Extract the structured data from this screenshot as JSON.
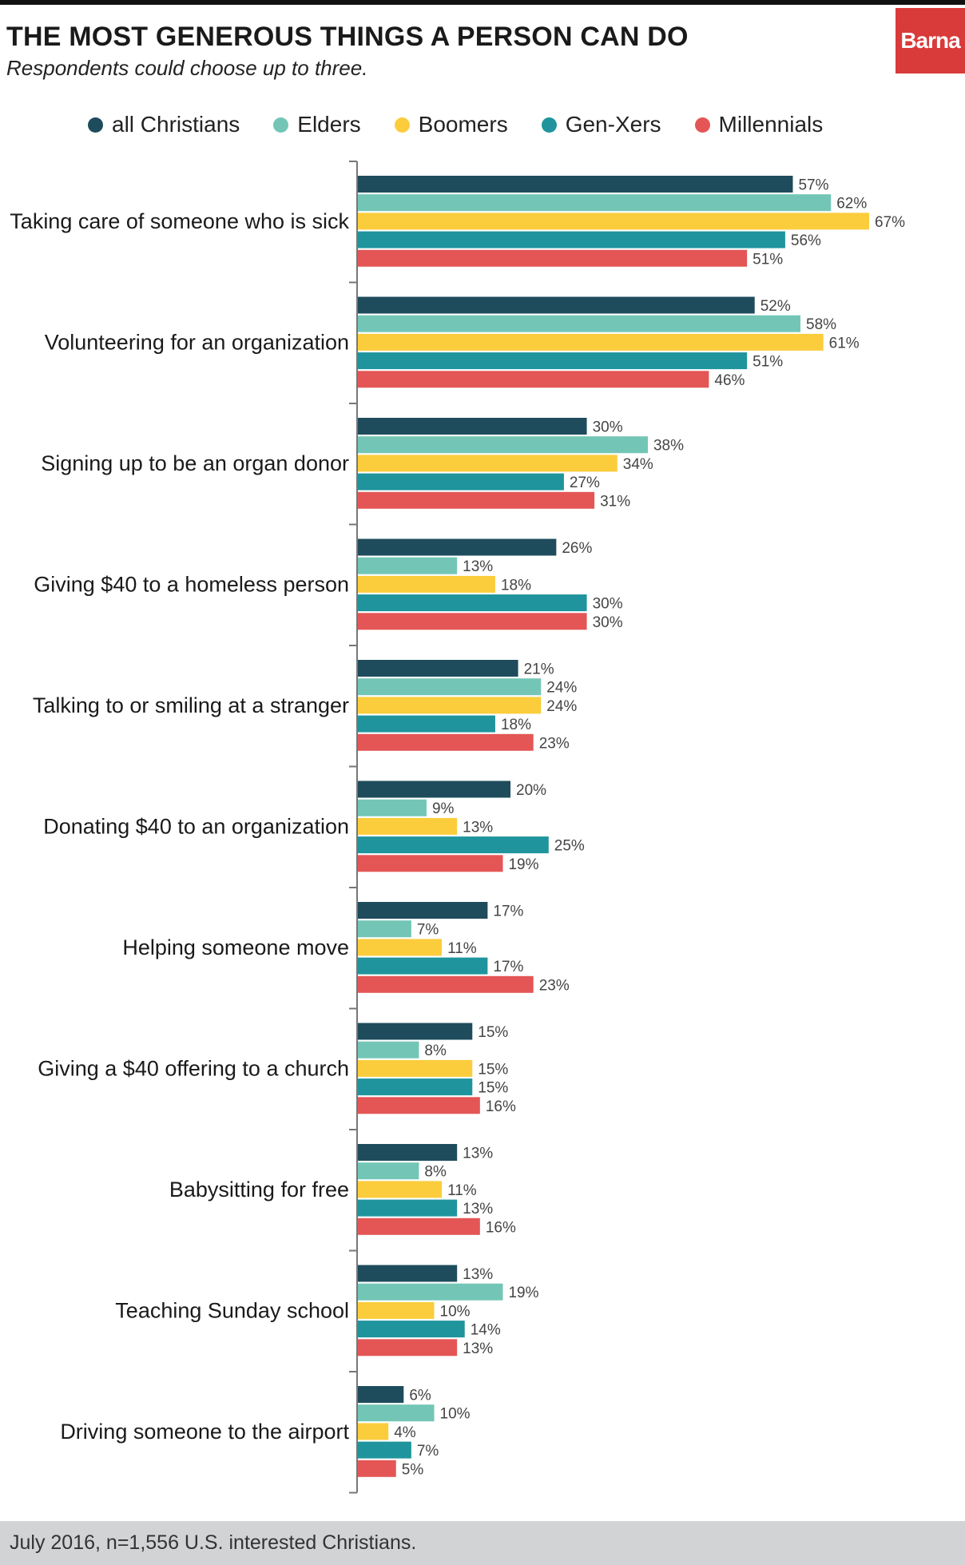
{
  "header": {
    "title": "THE MOST GENEROUS THINGS A PERSON CAN DO",
    "subtitle": "Respondents could choose up to three.",
    "logo_text": "Barna",
    "logo_color": "#d93a3a"
  },
  "footer": {
    "note": "July 2016, n=1,556 U.S. interested Christians."
  },
  "chart_data": {
    "type": "bar",
    "orientation": "horizontal",
    "title": "THE MOST GENEROUS THINGS A PERSON CAN DO",
    "subtitle": "Respondents could choose up to three.",
    "value_suffix": "%",
    "xlim": [
      0,
      67
    ],
    "grid": false,
    "legend_position": "top",
    "categories": [
      "Taking care of someone who is sick",
      "Volunteering for an organization",
      "Signing up to be an organ donor",
      "Giving $40 to a homeless person",
      "Talking to or smiling at a stranger",
      "Donating $40 to an organization",
      "Helping someone move",
      "Giving a $40 offering to a church",
      "Babysitting for free",
      "Teaching Sunday school",
      "Driving someone to the airport"
    ],
    "series": [
      {
        "name": "all Christians",
        "color": "#1e4c5c",
        "values": [
          57,
          52,
          30,
          26,
          21,
          20,
          17,
          15,
          13,
          13,
          6
        ]
      },
      {
        "name": "Elders",
        "color": "#73c6b6",
        "values": [
          62,
          58,
          38,
          13,
          24,
          9,
          7,
          8,
          8,
          19,
          10
        ]
      },
      {
        "name": "Boomers",
        "color": "#fbcd3c",
        "values": [
          67,
          61,
          34,
          18,
          24,
          13,
          11,
          15,
          11,
          10,
          4
        ]
      },
      {
        "name": "Gen-Xers",
        "color": "#1f949d",
        "values": [
          56,
          51,
          27,
          30,
          18,
          25,
          17,
          15,
          13,
          14,
          7
        ]
      },
      {
        "name": "Millennials",
        "color": "#e35655",
        "values": [
          51,
          46,
          31,
          30,
          23,
          19,
          23,
          16,
          16,
          13,
          5
        ]
      }
    ]
  }
}
